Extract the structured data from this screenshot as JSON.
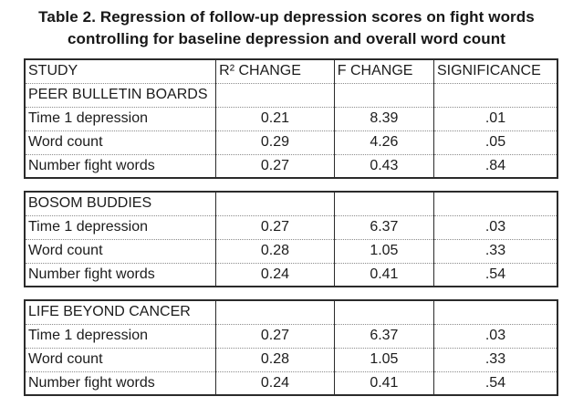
{
  "title": {
    "line1": "Table 2. Regression of follow-up depression scores on fight words",
    "line2": "controlling for baseline depression and overall word count"
  },
  "chart_data": {
    "type": "table",
    "title": "Table 2. Regression of follow-up depression scores on fight words controlling for baseline depression and overall word count",
    "columns": [
      "STUDY",
      "R² CHANGE",
      "F CHANGE",
      "SIGNIFICANCE"
    ],
    "sections": [
      {
        "name": "PEER BULLETIN BOARDS",
        "rows": [
          {
            "label": "Time 1 depression",
            "r2_change": "0.21",
            "f_change": "8.39",
            "significance": ".01"
          },
          {
            "label": "Word count",
            "r2_change": "0.29",
            "f_change": "4.26",
            "significance": ".05"
          },
          {
            "label": "Number fight words",
            "r2_change": "0.27",
            "f_change": "0.43",
            "significance": ".84"
          }
        ]
      },
      {
        "name": "BOSOM BUDDIES",
        "rows": [
          {
            "label": "Time 1 depression",
            "r2_change": "0.27",
            "f_change": "6.37",
            "significance": ".03"
          },
          {
            "label": "Word count",
            "r2_change": "0.28",
            "f_change": "1.05",
            "significance": ".33"
          },
          {
            "label": "Number fight words",
            "r2_change": "0.24",
            "f_change": "0.41",
            "significance": ".54"
          }
        ]
      },
      {
        "name": "LIFE BEYOND CANCER",
        "rows": [
          {
            "label": "Time 1 depression",
            "r2_change": "0.27",
            "f_change": "6.37",
            "significance": ".03"
          },
          {
            "label": "Word count",
            "r2_change": "0.28",
            "f_change": "1.05",
            "significance": ".33"
          },
          {
            "label": "Number fight words",
            "r2_change": "0.24",
            "f_change": "0.41",
            "significance": ".54"
          }
        ]
      }
    ]
  }
}
